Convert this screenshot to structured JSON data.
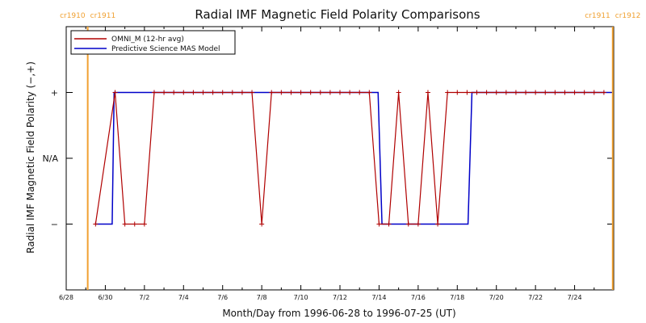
{
  "chart_data": {
    "type": "line",
    "title": "Radial IMF Magnetic Field Polarity Comparisons",
    "xlabel": "Month/Day from 1996-06-28 to 1996-07-25 (UT)",
    "ylabel": "Radial IMF Magnetic Field Polarity (−,+)",
    "x_tick_labels": [
      "6/28",
      "6/30",
      "7/2",
      "7/4",
      "7/6",
      "7/8",
      "7/10",
      "7/12",
      "7/14",
      "7/16",
      "7/18",
      "7/20",
      "7/22",
      "7/24"
    ],
    "x_tick_days": [
      0,
      2,
      4,
      6,
      8,
      10,
      12,
      14,
      16,
      18,
      20,
      22,
      24,
      26
    ],
    "xlim_days": [
      0,
      28
    ],
    "y_tick_labels": [
      "−",
      "N/A",
      "+"
    ],
    "y_tick_values": [
      -1,
      0,
      1
    ],
    "ylim": [
      -2,
      2
    ],
    "colors": {
      "omni": "#b00000",
      "mas": "#0000c8",
      "carrington": "#f0a030",
      "frame": "#000000"
    },
    "legend": {
      "position": "top-left",
      "entries": [
        "OMNI_M (12-hr avg)",
        "Predictive Science MAS Model"
      ]
    },
    "carrington_markers": [
      {
        "label_left": "cr1910",
        "label_right": "cr1911",
        "day": 1.1
      },
      {
        "label_left": "cr1911",
        "label_right": "cr1912",
        "day": 27.95
      }
    ],
    "series": [
      {
        "name": "OMNI_M (12-hr avg)",
        "x": [
          1.5,
          2.5,
          3.0,
          3.5,
          4.0,
          4.5,
          5.0,
          5.5,
          6.0,
          6.5,
          7.0,
          7.5,
          8.0,
          8.5,
          9.0,
          9.5,
          10.0,
          10.5,
          11.0,
          11.5,
          12.0,
          12.5,
          13.0,
          13.5,
          14.0,
          14.5,
          15.0,
          15.5,
          16.0,
          16.5,
          17.0,
          17.5,
          18.0,
          18.5,
          19.0,
          19.5,
          20.0,
          20.5,
          21.0,
          21.5,
          22.0,
          22.5,
          23.0,
          23.5,
          24.0,
          24.5,
          25.0,
          25.5,
          26.0,
          26.5,
          27.0,
          27.5
        ],
        "y": [
          -1,
          1,
          -1,
          -1,
          -1,
          1,
          1,
          1,
          1,
          1,
          1,
          1,
          1,
          1,
          1,
          1,
          -1,
          1,
          1,
          1,
          1,
          1,
          1,
          1,
          1,
          1,
          1,
          1,
          -1,
          -1,
          1,
          -1,
          -1,
          1,
          -1,
          1,
          1,
          1,
          1,
          1,
          1,
          1,
          1,
          1,
          1,
          1,
          1,
          1,
          1,
          1,
          1,
          1
        ],
        "x_sorted_note": ""
      },
      {
        "name": "Predictive Science MAS Model",
        "x": [
          1.5,
          2.35,
          2.45,
          15.95,
          16.15,
          20.55,
          20.75,
          27.9
        ],
        "y": [
          -1,
          -1,
          1,
          1,
          -1,
          -1,
          1,
          1
        ]
      }
    ]
  }
}
